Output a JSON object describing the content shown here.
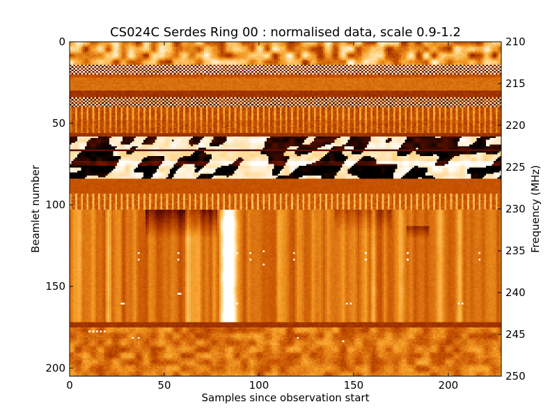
{
  "chart_data": {
    "type": "heatmap",
    "title": "CS024C Serdes Ring 00 : normalised data, scale 0.9-1.2",
    "xlabel": "Samples since observation start",
    "ylabel": "Beamlet number",
    "y2label": "Frequency (MHz)",
    "xlim": [
      0,
      228
    ],
    "ylim": [
      205,
      0
    ],
    "y2lim": [
      250,
      210
    ],
    "color_scale": [
      0.9,
      1.2
    ],
    "colormap": [
      "#000000",
      "#7a1500",
      "#c65200",
      "#f39a24",
      "#ffd07a",
      "#ffffff"
    ],
    "x_ticks": [
      "0",
      "50",
      "100",
      "150",
      "200"
    ],
    "y_ticks": [
      "0",
      "50",
      "100",
      "150",
      "200"
    ],
    "y2_ticks": [
      "210",
      "215",
      "220",
      "225",
      "230",
      "235",
      "240",
      "245",
      "250"
    ],
    "bands": [
      {
        "range": [
          0,
          14
        ],
        "mean": 0.62,
        "pattern": "blotch",
        "amp": 0.35
      },
      {
        "range": [
          14,
          20
        ],
        "mean": 0.55,
        "pattern": "checker",
        "amp": 0.45
      },
      {
        "range": [
          20,
          22
        ],
        "mean": 0.4,
        "pattern": "flat",
        "amp": 0.05
      },
      {
        "range": [
          22,
          30
        ],
        "mean": 0.48,
        "pattern": "flat",
        "amp": 0.06
      },
      {
        "range": [
          30,
          34
        ],
        "mean": 0.3,
        "pattern": "flat",
        "amp": 0.05
      },
      {
        "range": [
          34,
          40
        ],
        "mean": 0.5,
        "pattern": "checker",
        "amp": 0.42
      },
      {
        "range": [
          40,
          48
        ],
        "mean": 0.45,
        "pattern": "stripes",
        "amp": 0.22
      },
      {
        "range": [
          48,
          56
        ],
        "mean": 0.42,
        "pattern": "stripes",
        "amp": 0.15
      },
      {
        "range": [
          56,
          58
        ],
        "mean": 0.3,
        "pattern": "flat",
        "amp": 0.04
      },
      {
        "range": [
          58,
          66
        ],
        "mean": 0.5,
        "pattern": "bold",
        "amp": 0.5
      },
      {
        "range": [
          66,
          67
        ],
        "mean": 0.15,
        "pattern": "flat",
        "amp": 0.02
      },
      {
        "range": [
          67,
          73
        ],
        "mean": 0.45,
        "pattern": "bold",
        "amp": 0.5
      },
      {
        "range": [
          73,
          76
        ],
        "mean": 0.55,
        "pattern": "bold",
        "amp": 0.5
      },
      {
        "range": [
          76,
          84
        ],
        "mean": 0.45,
        "pattern": "bold",
        "amp": 0.55
      },
      {
        "range": [
          84,
          93
        ],
        "mean": 0.4,
        "pattern": "flat",
        "amp": 0.04
      },
      {
        "range": [
          93,
          103
        ],
        "mean": 0.5,
        "pattern": "stripes",
        "amp": 0.25
      },
      {
        "range": [
          103,
          172
        ],
        "mean": 0.5,
        "pattern": "streaks",
        "amp": 0.12
      },
      {
        "range": [
          172,
          175
        ],
        "mean": 0.3,
        "pattern": "flat",
        "amp": 0.05
      },
      {
        "range": [
          175,
          205
        ],
        "mean": 0.5,
        "pattern": "blotch",
        "amp": 0.15
      }
    ],
    "bright_columns": [
      {
        "x": 5,
        "amp": 0.2
      },
      {
        "x": 20,
        "amp": 0.18
      },
      {
        "x": 62,
        "amp": 0.25
      },
      {
        "x": 66,
        "amp": 0.2
      },
      {
        "x": 80,
        "amp": 0.45
      },
      {
        "x": 82,
        "amp": 0.55
      },
      {
        "x": 84,
        "amp": 0.5
      },
      {
        "x": 86,
        "amp": 0.45
      },
      {
        "x": 88,
        "amp": 0.3
      },
      {
        "x": 110,
        "amp": 0.15
      },
      {
        "x": 130,
        "amp": 0.15
      },
      {
        "x": 160,
        "amp": 0.2
      },
      {
        "x": 175,
        "amp": 0.15
      },
      {
        "x": 195,
        "amp": 0.15
      },
      {
        "x": 205,
        "amp": 0.2
      }
    ],
    "dark_regions": [
      {
        "x": [
          40,
          78
        ],
        "y": [
          103,
          120
        ],
        "amp": 0.3
      },
      {
        "x": [
          140,
          170
        ],
        "y": [
          103,
          116
        ],
        "amp": 0.15
      },
      {
        "x": [
          178,
          190
        ],
        "y": [
          113,
          120
        ],
        "amp": 0.2
      }
    ],
    "hot_pixels": [
      [
        36,
        129
      ],
      [
        36,
        133
      ],
      [
        57,
        129
      ],
      [
        57,
        133
      ],
      [
        88,
        129
      ],
      [
        95,
        129
      ],
      [
        95,
        133
      ],
      [
        118,
        129
      ],
      [
        118,
        133
      ],
      [
        156,
        129
      ],
      [
        156,
        133
      ],
      [
        178,
        129
      ],
      [
        178,
        133
      ],
      [
        216,
        129
      ],
      [
        216,
        133
      ],
      [
        102,
        128
      ],
      [
        102,
        136
      ],
      [
        27,
        160
      ],
      [
        28,
        160
      ],
      [
        57,
        154
      ],
      [
        58,
        154
      ],
      [
        86,
        160
      ],
      [
        88,
        160
      ],
      [
        146,
        160
      ],
      [
        148,
        160
      ],
      [
        205,
        160
      ],
      [
        207,
        160
      ],
      [
        33,
        181
      ],
      [
        36,
        181
      ],
      [
        120,
        181
      ],
      [
        144,
        183
      ],
      [
        10,
        177
      ],
      [
        12,
        177
      ],
      [
        14,
        177
      ],
      [
        16,
        177
      ],
      [
        18,
        177
      ]
    ]
  }
}
